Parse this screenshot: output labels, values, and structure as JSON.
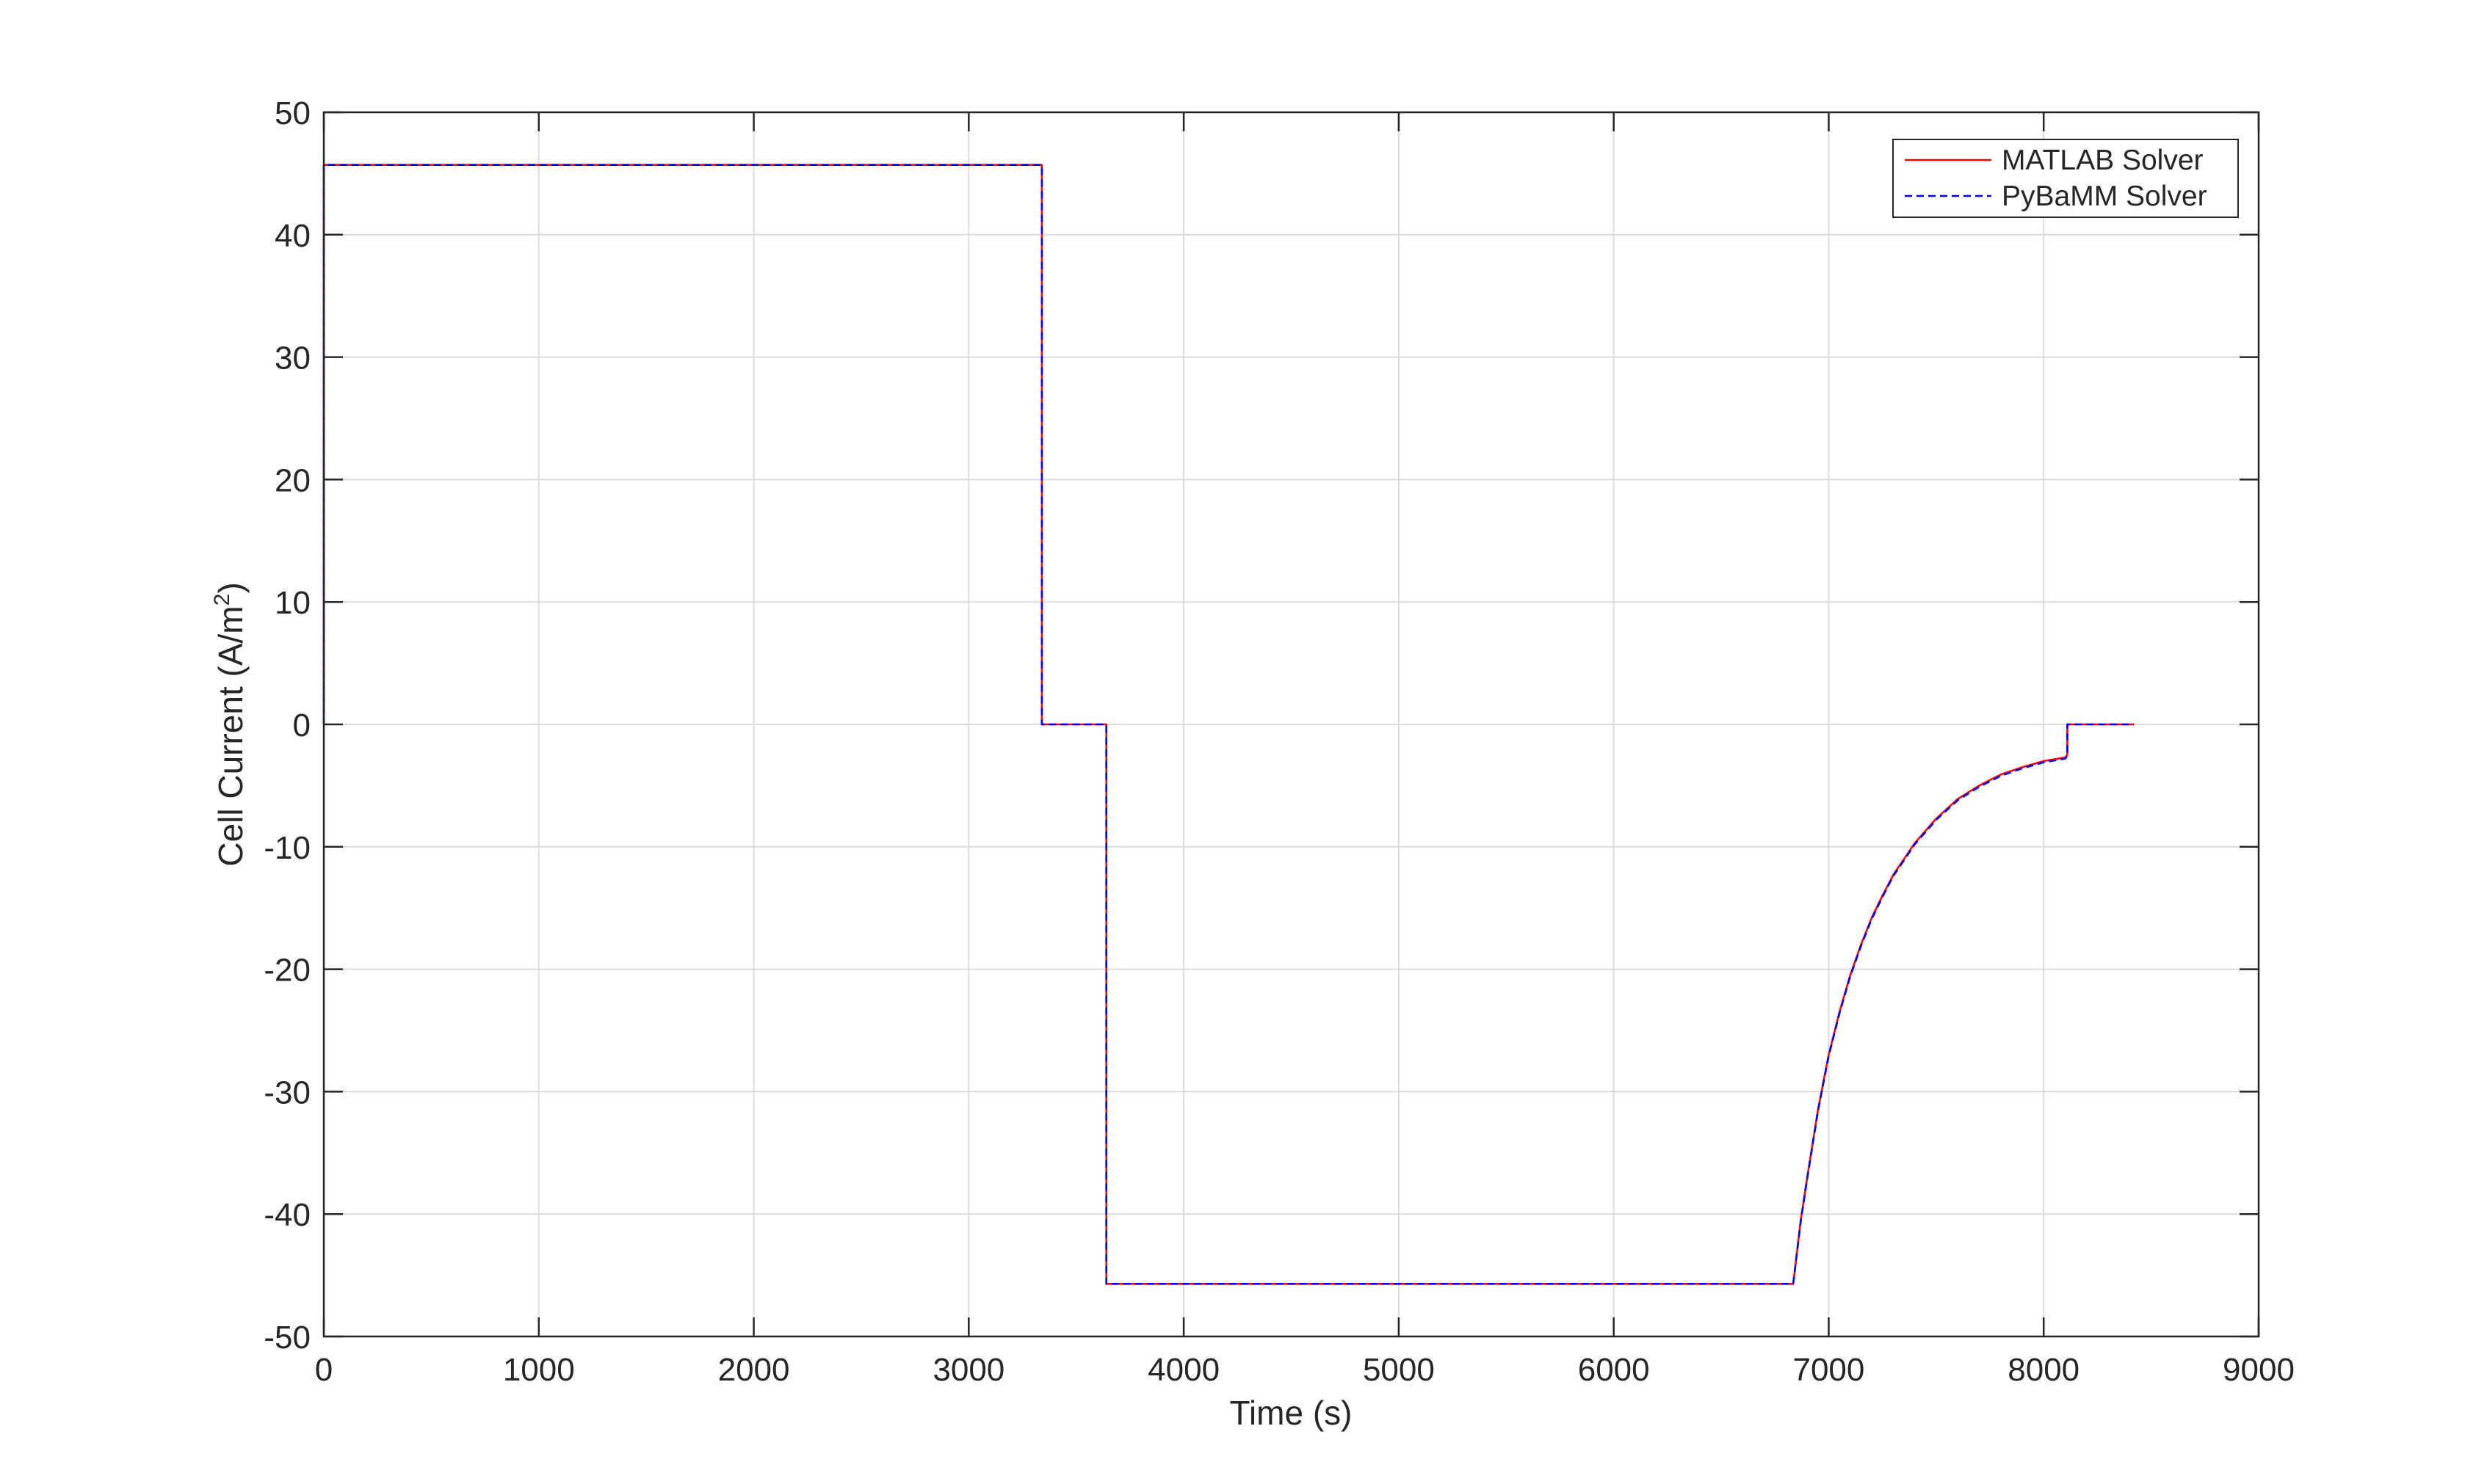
{
  "chart_data": {
    "type": "line",
    "title": "",
    "xlabel": "Time (s)",
    "ylabel_main": "Cell  Current  (A/m",
    "ylabel_sup": "2",
    "ylabel_close": ")",
    "xlim": [
      0,
      9000
    ],
    "ylim": [
      -50,
      50
    ],
    "xticks": [
      0,
      1000,
      2000,
      3000,
      4000,
      5000,
      6000,
      7000,
      8000,
      9000
    ],
    "yticks": [
      -50,
      -40,
      -30,
      -20,
      -10,
      0,
      10,
      20,
      30,
      40,
      50
    ],
    "xtick_labels": [
      "0",
      "1000",
      "2000",
      "3000",
      "4000",
      "5000",
      "6000",
      "7000",
      "8000",
      "9000"
    ],
    "ytick_labels": [
      "-50",
      "-40",
      "-30",
      "-20",
      "-10",
      "0",
      "10",
      "20",
      "30",
      "40",
      "50"
    ],
    "grid": true,
    "legend_position": "top-right",
    "series": [
      {
        "name": "MATLAB Solver",
        "color": "#ff0000",
        "style": "solid",
        "x": [
          0,
          0,
          3340,
          3340,
          3640,
          3640,
          6835,
          6870,
          6900,
          6950,
          7000,
          7050,
          7100,
          7150,
          7200,
          7250,
          7300,
          7400,
          7500,
          7600,
          7700,
          7800,
          7900,
          8000,
          8100,
          8110,
          8110,
          8420
        ],
        "y": [
          0,
          45.7,
          45.7,
          0,
          0,
          -45.7,
          -45.7,
          -40.5,
          -37.0,
          -31.5,
          -27.0,
          -23.5,
          -20.5,
          -18.0,
          -15.8,
          -14.0,
          -12.3,
          -9.7,
          -7.7,
          -6.1,
          -5.0,
          -4.1,
          -3.5,
          -3.0,
          -2.7,
          -2.5,
          0,
          0
        ]
      },
      {
        "name": "PyBaMM Solver",
        "color": "#0000ff",
        "style": "dashed",
        "x": [
          0,
          0,
          3340,
          3340,
          3640,
          3640,
          6835,
          6870,
          6900,
          6950,
          7000,
          7050,
          7100,
          7150,
          7200,
          7250,
          7300,
          7400,
          7500,
          7600,
          7700,
          7800,
          7900,
          8000,
          8100,
          8110,
          8110,
          8420
        ],
        "y": [
          0,
          45.7,
          45.7,
          0,
          0,
          -45.7,
          -45.7,
          -40.6,
          -37.1,
          -31.6,
          -27.1,
          -23.6,
          -20.6,
          -18.1,
          -15.9,
          -14.1,
          -12.4,
          -9.8,
          -7.8,
          -6.2,
          -5.1,
          -4.2,
          -3.6,
          -3.1,
          -2.8,
          -2.6,
          0,
          0
        ]
      }
    ]
  }
}
